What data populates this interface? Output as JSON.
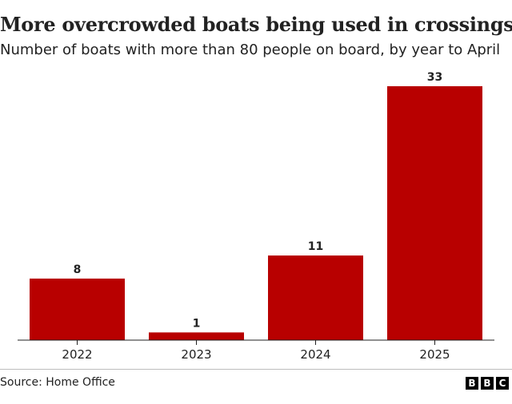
{
  "chart_data": {
    "type": "bar",
    "title": "More overcrowded boats being used in crossings",
    "subtitle": "Number of boats with more than 80 people on board, by year to April",
    "categories": [
      "2022",
      "2023",
      "2024",
      "2025"
    ],
    "values": [
      8,
      1,
      11,
      33
    ],
    "data_labels": [
      "8",
      "1",
      "11",
      "33"
    ],
    "xlabel": "",
    "ylabel": "",
    "ylim": [
      0,
      33
    ],
    "grid": false,
    "legend": "none",
    "bar_color": "#b80000"
  },
  "footer": {
    "source": "Source: Home Office",
    "logo_letters": [
      "B",
      "B",
      "C"
    ]
  }
}
